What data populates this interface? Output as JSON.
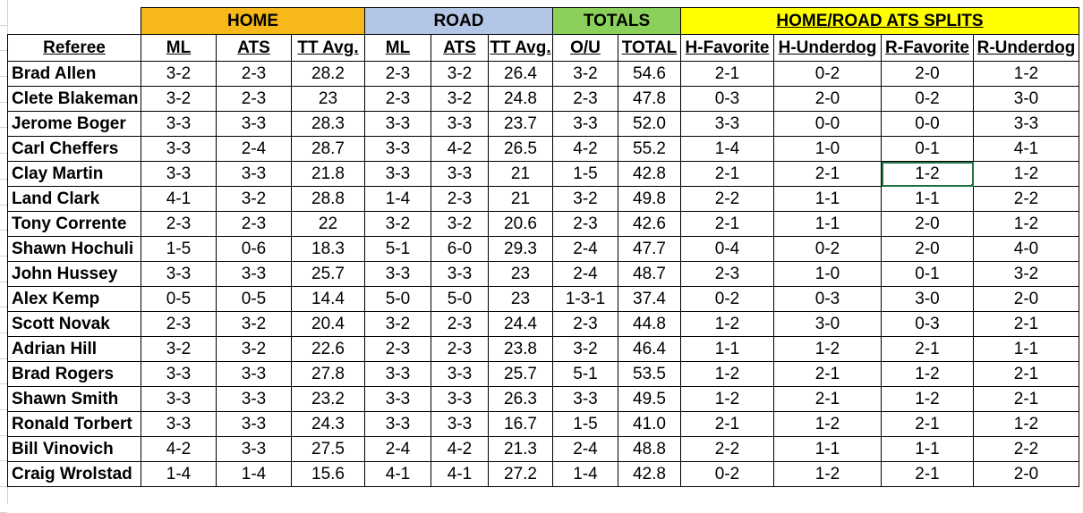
{
  "groups": {
    "home": "HOME",
    "road": "ROAD",
    "totals": "TOTALS",
    "splits": "HOME/ROAD ATS SPLITS"
  },
  "headers": [
    "Referee",
    "ML",
    "ATS",
    "TT Avg.",
    "ML",
    "ATS",
    "TT Avg.",
    "O/U",
    "TOTAL",
    "H-Favorite",
    "H-Underdog",
    "R-Favorite",
    "R-Underdog"
  ],
  "rows": [
    [
      "Brad Allen",
      "3-2",
      "2-3",
      "28.2",
      "2-3",
      "3-2",
      "26.4",
      "3-2",
      "54.6",
      "2-1",
      "0-2",
      "2-0",
      "1-2"
    ],
    [
      "Clete Blakeman",
      "3-2",
      "2-3",
      "23",
      "2-3",
      "3-2",
      "24.8",
      "2-3",
      "47.8",
      "0-3",
      "2-0",
      "0-2",
      "3-0"
    ],
    [
      "Jerome Boger",
      "3-3",
      "3-3",
      "28.3",
      "3-3",
      "3-3",
      "23.7",
      "3-3",
      "52.0",
      "3-3",
      "0-0",
      "0-0",
      "3-3"
    ],
    [
      "Carl Cheffers",
      "3-3",
      "2-4",
      "28.7",
      "3-3",
      "4-2",
      "26.5",
      "4-2",
      "55.2",
      "1-4",
      "1-0",
      "0-1",
      "4-1"
    ],
    [
      "Clay Martin",
      "3-3",
      "3-3",
      "21.8",
      "3-3",
      "3-3",
      "21",
      "1-5",
      "42.8",
      "2-1",
      "2-1",
      "1-2",
      "1-2"
    ],
    [
      "Land Clark",
      "4-1",
      "3-2",
      "28.8",
      "1-4",
      "2-3",
      "21",
      "3-2",
      "49.8",
      "2-2",
      "1-1",
      "1-1",
      "2-2"
    ],
    [
      "Tony Corrente",
      "2-3",
      "2-3",
      "22",
      "3-2",
      "3-2",
      "20.6",
      "2-3",
      "42.6",
      "2-1",
      "1-1",
      "2-0",
      "1-2"
    ],
    [
      "Shawn Hochuli",
      "1-5",
      "0-6",
      "18.3",
      "5-1",
      "6-0",
      "29.3",
      "2-4",
      "47.7",
      "0-4",
      "0-2",
      "2-0",
      "4-0"
    ],
    [
      "John Hussey",
      "3-3",
      "3-3",
      "25.7",
      "3-3",
      "3-3",
      "23",
      "2-4",
      "48.7",
      "2-3",
      "1-0",
      "0-1",
      "3-2"
    ],
    [
      "Alex Kemp",
      "0-5",
      "0-5",
      "14.4",
      "5-0",
      "5-0",
      "23",
      "1-3-1",
      "37.4",
      "0-2",
      "0-3",
      "3-0",
      "2-0"
    ],
    [
      "Scott Novak",
      "2-3",
      "3-2",
      "20.4",
      "3-2",
      "2-3",
      "24.4",
      "2-3",
      "44.8",
      "1-2",
      "3-0",
      "0-3",
      "2-1"
    ],
    [
      "Adrian Hill",
      "3-2",
      "3-2",
      "22.6",
      "2-3",
      "2-3",
      "23.8",
      "3-2",
      "46.4",
      "1-1",
      "1-2",
      "2-1",
      "1-1"
    ],
    [
      "Brad Rogers",
      "3-3",
      "3-3",
      "27.8",
      "3-3",
      "3-3",
      "25.7",
      "5-1",
      "53.5",
      "1-2",
      "2-1",
      "1-2",
      "2-1"
    ],
    [
      "Shawn Smith",
      "3-3",
      "3-3",
      "23.2",
      "3-3",
      "3-3",
      "26.3",
      "3-3",
      "49.5",
      "1-2",
      "2-1",
      "1-2",
      "2-1"
    ],
    [
      "Ronald Torbert",
      "3-3",
      "3-3",
      "24.3",
      "3-3",
      "3-3",
      "16.7",
      "1-5",
      "41.0",
      "2-1",
      "1-2",
      "2-1",
      "1-2"
    ],
    [
      "Bill Vinovich",
      "4-2",
      "3-3",
      "27.5",
      "2-4",
      "4-2",
      "21.3",
      "2-4",
      "48.8",
      "2-2",
      "1-1",
      "1-1",
      "2-2"
    ],
    [
      "Craig Wrolstad",
      "1-4",
      "1-4",
      "15.6",
      "4-1",
      "4-1",
      "27.2",
      "1-4",
      "42.8",
      "0-2",
      "1-2",
      "2-1",
      "2-0"
    ]
  ],
  "colors": {
    "home": "#f6b919",
    "road": "#b3c6e6",
    "totals": "#8bd05a",
    "splits": "#ffff00",
    "selection": "#217346"
  }
}
